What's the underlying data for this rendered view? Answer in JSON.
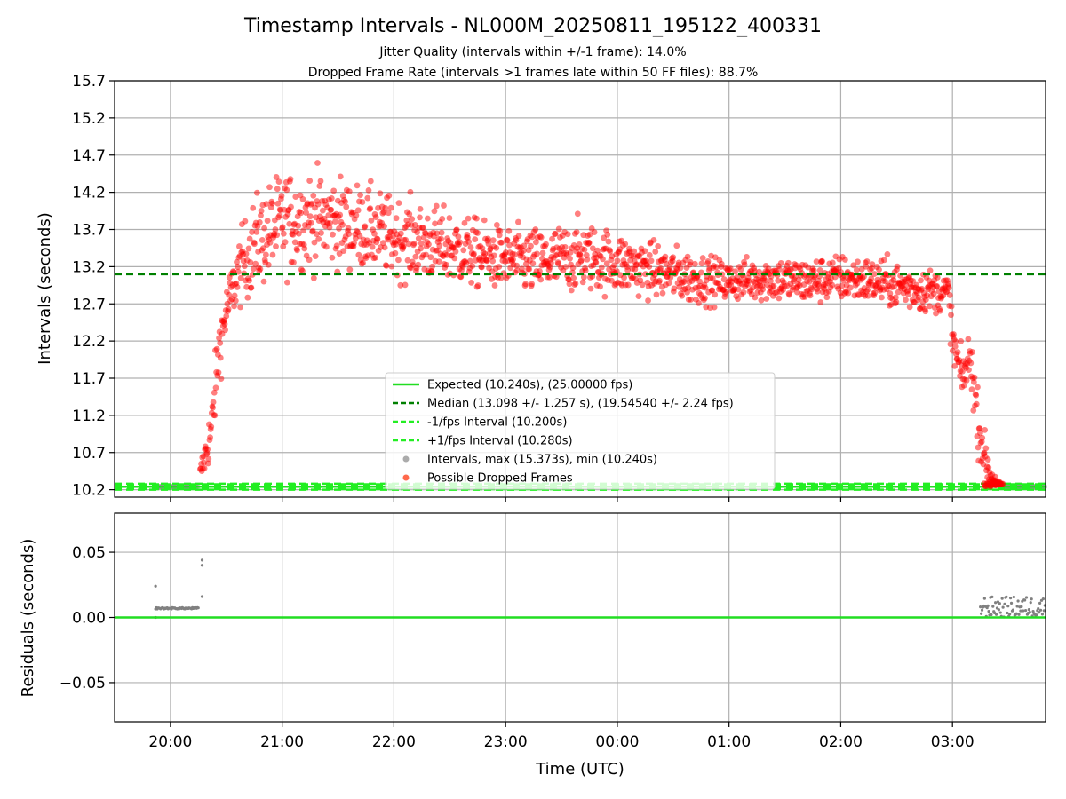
{
  "chart_data": {
    "type": "scatter",
    "title": "Timestamp Intervals - NL000M_20250811_195122_400331",
    "subtitle_lines": [
      "Jitter Quality (intervals within +/-1 frame): 14.0%",
      "Dropped Frame Rate (intervals >1 frames late within 50 FF files): 88.7%"
    ],
    "xlabel": "Time (UTC)",
    "x_start": "2025-08-11 19:30",
    "x_end": "2025-08-12 03:50",
    "x_tick_labels": [
      "20:00",
      "21:00",
      "22:00",
      "23:00",
      "00:00",
      "01:00",
      "02:00",
      "03:00"
    ],
    "x_tick_times": [
      "2025-08-11 20:00",
      "2025-08-11 21:00",
      "2025-08-11 22:00",
      "2025-08-11 23:00",
      "2025-08-12 00:00",
      "2025-08-12 01:00",
      "2025-08-12 02:00",
      "2025-08-12 03:00"
    ],
    "grid": true,
    "colors": {
      "expected": "#22dd22",
      "median": "#008000",
      "interval_bounds": "#22ee22",
      "intervals": "#888888",
      "dropped": "#ff0000",
      "residuals": "#808080"
    },
    "top_panel": {
      "ylabel": "Intervals (seconds)",
      "ylim": [
        10.1,
        15.7
      ],
      "y_ticks": [
        10.2,
        10.7,
        11.2,
        11.7,
        12.2,
        12.7,
        13.2,
        13.7,
        14.2,
        14.7,
        15.2,
        15.7
      ],
      "y_tick_labels": [
        "10.2",
        "10.7",
        "11.2",
        "11.7",
        "12.2",
        "12.7",
        "13.2",
        "13.7",
        "14.2",
        "14.7",
        "15.2",
        "15.7"
      ],
      "expected_interval": 10.24,
      "median_interval": 13.098,
      "minus_interval": 10.2,
      "plus_interval": 10.28,
      "legend_placement": "lower-center",
      "legend": [
        "Expected (10.240s), (25.00000 fps)",
        "Median (13.098 +/- 1.257 s), (19.54540 +/- 2.24 fps)",
        "-1/fps Interval (10.200s)",
        "+1/fps Interval (10.280s)",
        "Intervals, max (15.373s), min (10.240s)",
        "Possible Dropped Frames"
      ],
      "dropped_frames_envelope": {
        "x": [
          "2025-08-11 20:16",
          "2025-08-11 20:22",
          "2025-08-11 20:26",
          "2025-08-11 20:30",
          "2025-08-11 20:36",
          "2025-08-11 20:45",
          "2025-08-11 21:00",
          "2025-08-11 21:20",
          "2025-08-11 21:40",
          "2025-08-11 22:00",
          "2025-08-11 22:20",
          "2025-08-11 22:40",
          "2025-08-11 23:00",
          "2025-08-11 23:20",
          "2025-08-11 23:40",
          "2025-08-12 00:00",
          "2025-08-12 00:20",
          "2025-08-12 00:40",
          "2025-08-12 01:00",
          "2025-08-12 01:20",
          "2025-08-12 01:40",
          "2025-08-12 02:00",
          "2025-08-12 02:20",
          "2025-08-12 02:40",
          "2025-08-12 02:58",
          "2025-08-12 03:00",
          "2025-08-12 03:05",
          "2025-08-12 03:10",
          "2025-08-12 03:13",
          "2025-08-12 03:17",
          "2025-08-12 03:20",
          "2025-08-12 03:26"
        ],
        "center": [
          10.4,
          11.0,
          12.1,
          12.6,
          13.1,
          13.5,
          13.8,
          13.85,
          13.75,
          13.6,
          13.5,
          13.4,
          13.3,
          13.25,
          13.35,
          13.25,
          13.15,
          13.05,
          13.0,
          13.05,
          13.0,
          13.05,
          13.0,
          12.9,
          12.85,
          12.2,
          11.7,
          12.0,
          11.2,
          10.7,
          10.4,
          10.26
        ],
        "spread": [
          0.15,
          0.4,
          0.45,
          0.35,
          0.45,
          0.6,
          0.65,
          0.6,
          0.55,
          0.5,
          0.5,
          0.45,
          0.4,
          0.45,
          0.45,
          0.4,
          0.35,
          0.35,
          0.25,
          0.3,
          0.3,
          0.3,
          0.3,
          0.3,
          0.25,
          0.35,
          0.3,
          0.35,
          0.4,
          0.3,
          0.15,
          0.02
        ]
      },
      "normal_interval_clusters": [
        {
          "from": "2025-08-11 19:52",
          "to": "2025-08-11 20:15",
          "y": 10.24
        },
        {
          "from": "2025-08-12 03:27",
          "to": "2025-08-12 03:50",
          "y": 10.24
        }
      ]
    },
    "bottom_panel": {
      "ylabel": "Residuals (seconds)",
      "ylim": [
        -0.08,
        0.08
      ],
      "y_ticks": [
        -0.05,
        0.0,
        0.05
      ],
      "y_tick_labels": [
        "−0.05",
        "0.00",
        "0.05"
      ],
      "zero_line": 0.0,
      "residual_clusters": [
        {
          "from": "2025-08-11 19:52",
          "to": "2025-08-11 20:15",
          "y": 0.007
        },
        {
          "from": "2025-08-12 03:15",
          "to": "2025-08-12 03:50",
          "y_min": 0.0,
          "y_max": 0.016
        }
      ],
      "residual_outliers": [
        {
          "x": "2025-08-11 19:52",
          "y": 0.024
        },
        {
          "x": "2025-08-11 19:52",
          "y": 0.0
        },
        {
          "x": "2025-08-11 20:17",
          "y": 0.044
        },
        {
          "x": "2025-08-11 20:17",
          "y": 0.04
        },
        {
          "x": "2025-08-11 20:17",
          "y": 0.016
        }
      ]
    }
  }
}
